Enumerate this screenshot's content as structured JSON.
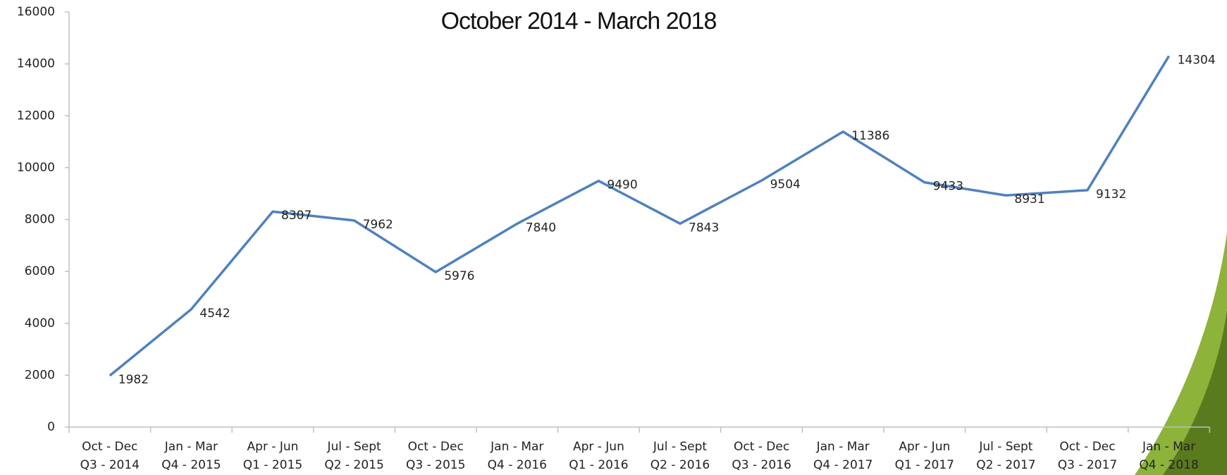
{
  "chart_data": {
    "type": "line",
    "title": "October 2014 - March  2018",
    "categories": [
      [
        "Oct - Dec",
        "Q3 - 2014"
      ],
      [
        "Jan - Mar",
        "Q4 - 2015"
      ],
      [
        "Apr - Jun",
        "Q1 - 2015"
      ],
      [
        "Jul - Sept",
        "Q2 - 2015"
      ],
      [
        "Oct - Dec",
        "Q3 - 2015"
      ],
      [
        "Jan - Mar",
        "Q4 - 2016"
      ],
      [
        "Apr - Jun",
        "Q1 - 2016"
      ],
      [
        "Jul - Sept",
        "Q2 - 2016"
      ],
      [
        "Oct - Dec",
        "Q3 - 2016"
      ],
      [
        "Jan - Mar",
        "Q4 - 2017"
      ],
      [
        "Apr - Jun",
        "Q1 - 2017"
      ],
      [
        "Jul - Sept",
        "Q2 - 2017"
      ],
      [
        "Oct - Dec",
        "Q3 - 2017"
      ],
      [
        "Jan - Mar",
        "Q4 - 2018"
      ]
    ],
    "values": [
      1982,
      4542,
      8307,
      7962,
      5976,
      7840,
      9490,
      7843,
      9504,
      11386,
      9433,
      8931,
      9132,
      14304
    ],
    "color": "#4f81bd",
    "ylim": [
      0,
      16000
    ],
    "yticks": [
      0,
      2000,
      4000,
      6000,
      8000,
      10000,
      12000,
      14000,
      16000
    ]
  }
}
